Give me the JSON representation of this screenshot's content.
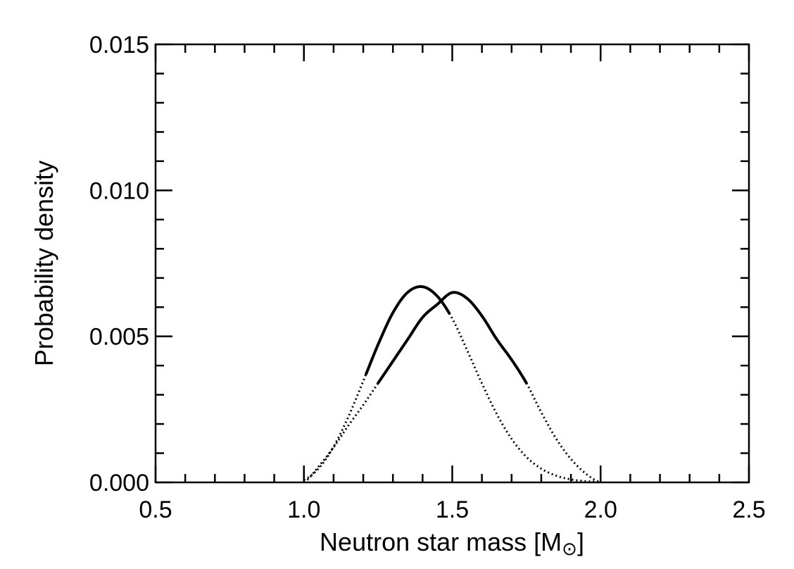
{
  "chart_data": {
    "type": "line",
    "title": "",
    "xlabel": "Neutron star mass [M",
    "xlabel_symbol": "⊙",
    "xlabel_close": "]",
    "ylabel": "Probability density",
    "xlim": [
      0.5,
      2.5
    ],
    "ylim": [
      0.0,
      0.015
    ],
    "x_ticks": [
      0.5,
      1.0,
      1.5,
      2.0,
      2.5
    ],
    "x_tick_labels": [
      "0.5",
      "1.0",
      "1.5",
      "2.0",
      "2.5"
    ],
    "y_ticks": [
      0.0,
      0.005,
      0.01,
      0.015
    ],
    "y_tick_labels": [
      "0.000",
      "0.005",
      "0.010",
      "0.015"
    ],
    "x_minor_step": 0.1,
    "y_minor_step": 0.001,
    "grid": false,
    "series": [
      {
        "x": [
          1.0,
          1.05,
          1.1,
          1.15,
          1.2,
          1.25,
          1.3,
          1.35,
          1.4,
          1.45,
          1.5,
          1.55,
          1.6,
          1.65,
          1.7,
          1.75,
          1.8,
          1.85,
          1.9,
          1.95,
          2.0
        ],
        "y": [
          9e-05,
          0.00048,
          0.00122,
          0.00225,
          0.00347,
          0.00472,
          0.00581,
          0.00651,
          0.0067,
          0.00637,
          0.00561,
          0.00453,
          0.00339,
          0.00234,
          0.00149,
          0.00087,
          0.00047,
          0.00023,
          0.0001,
          4e-05,
          2e-05
        ],
        "solid_range": [
          1.21,
          1.49
        ],
        "line_style": "solid-core dotted-tails",
        "color": "#000000"
      },
      {
        "x": [
          1.0,
          1.05,
          1.1,
          1.15,
          1.2,
          1.25,
          1.3,
          1.35,
          1.4,
          1.45,
          1.5,
          1.55,
          1.6,
          1.65,
          1.7,
          1.75,
          1.8,
          1.85,
          1.9,
          1.95,
          2.0
        ],
        "y": [
          0.0,
          0.00055,
          0.0012,
          0.00195,
          0.00265,
          0.0034,
          0.00415,
          0.0049,
          0.00565,
          0.0061,
          0.0065,
          0.0063,
          0.0057,
          0.0049,
          0.0042,
          0.0034,
          0.0024,
          0.0015,
          0.0008,
          0.0003,
          0.0
        ],
        "solid_range": [
          1.25,
          1.75
        ],
        "line_style": "solid-core dotted-tails",
        "color": "#000000"
      }
    ]
  }
}
